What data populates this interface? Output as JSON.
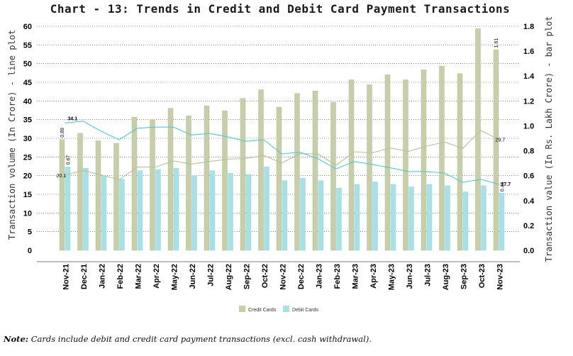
{
  "chart_data": {
    "type": "bar",
    "title": "Chart - 13: Trends in Credit and Debit Card Payment Transactions",
    "ylabel_left": "Transaction volume (In Crore) - line plot",
    "ylabel_right": "Transaction value (In Rs. Lakh Crore) - bar plot",
    "ylim_left": [
      0,
      60
    ],
    "yticks_left": [
      0,
      5,
      10,
      15,
      20,
      25,
      30,
      35,
      40,
      45,
      50,
      55,
      60
    ],
    "ylim_right": [
      0,
      1.8
    ],
    "yticks_right": [
      "0.0",
      "0.2",
      "0.4",
      "0.6",
      "0.8",
      "1.0",
      "1.2",
      "1.4",
      "1.6",
      "1.8"
    ],
    "grid": "horizontal dotted",
    "legend_position": "bottom",
    "categories": [
      "Nov-21",
      "Dec-21",
      "Jan-22",
      "Feb-22",
      "Mar-22",
      "Apr-22",
      "May-22",
      "Jun-22",
      "Jul-22",
      "Aug-22",
      "Sep-22",
      "Oct-22",
      "Nov-22",
      "Dec-22",
      "Jan-23",
      "Feb-23",
      "Mar-23",
      "Apr-23",
      "May-23",
      "Jun-23",
      "Jul-23",
      "Aug-23",
      "Sep-23",
      "Oct-23",
      "Nov-23"
    ],
    "bar_series": [
      {
        "name": "Credit Cards",
        "axis": "right",
        "color": "#c7cfa9",
        "values": [
          0.89,
          0.94,
          0.88,
          0.86,
          1.07,
          1.05,
          1.14,
          1.08,
          1.16,
          1.12,
          1.22,
          1.29,
          1.15,
          1.26,
          1.28,
          1.19,
          1.37,
          1.33,
          1.41,
          1.37,
          1.45,
          1.48,
          1.42,
          1.78,
          1.61
        ]
      },
      {
        "name": "Debit Cards",
        "axis": "right",
        "color": "#a7e1e8",
        "values": [
          0.67,
          0.66,
          0.6,
          0.57,
          0.64,
          0.65,
          0.66,
          0.6,
          0.64,
          0.62,
          0.61,
          0.67,
          0.56,
          0.58,
          0.56,
          0.5,
          0.53,
          0.55,
          0.53,
          0.51,
          0.53,
          0.52,
          0.47,
          0.52,
          0.46
        ]
      }
    ],
    "line_series": [
      {
        "name": "Credit Cards",
        "axis": "left",
        "color": "#b7c296",
        "values": [
          20.1,
          21.4,
          20.2,
          18.9,
          22.3,
          22.3,
          23.9,
          23.1,
          23.8,
          24.4,
          24.6,
          25.4,
          23.4,
          25.9,
          25.8,
          22.8,
          26.4,
          26.1,
          27.4,
          26.5,
          27.9,
          29.0,
          27.3,
          32.1,
          29.7
        ]
      },
      {
        "name": "Debit Cards",
        "axis": "left",
        "color": "#4fc9d6",
        "values": [
          34.1,
          34.6,
          31.9,
          29.6,
          32.7,
          33.0,
          33.0,
          30.9,
          31.3,
          30.4,
          29.2,
          29.6,
          25.8,
          26.3,
          24.5,
          21.8,
          23.8,
          23.0,
          22.1,
          21.1,
          21.1,
          20.7,
          18.2,
          19.0,
          17.7
        ]
      }
    ],
    "data_labels": [
      {
        "text": "34.1"
      },
      {
        "text": "20.1"
      },
      {
        "text": "0.89"
      },
      {
        "text": "0.67"
      },
      {
        "text": "1.61"
      },
      {
        "text": "29.7"
      },
      {
        "text": "17.7"
      },
      {
        "text": "0.46"
      }
    ]
  },
  "legend": {
    "credit_label": "Credit Cards",
    "debit_label": "Debit Cards",
    "credit_color": "#c7cfa9",
    "debit_color": "#a7e1e8"
  },
  "note": {
    "prefix": "Note:",
    "text": " Cards include debit and credit card payment transactions (excl. cash withdrawal)."
  }
}
